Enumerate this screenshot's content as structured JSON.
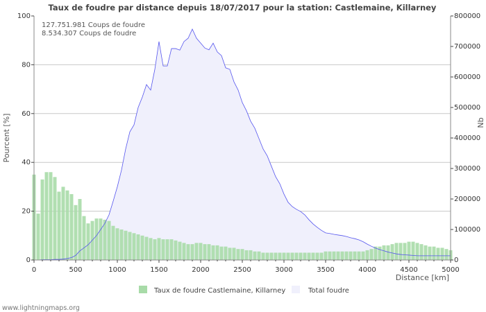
{
  "chart_data": {
    "type": "bar",
    "title": "Taux de foudre par distance depuis 18/07/2017 pour la station: Castlemaine, Killarney",
    "annotations": [
      "127.751.981  Coups de foudre",
      "8.534.307  Coups de foudre"
    ],
    "xlabel": "Distance   [km]",
    "ylabel": "Pourcent   [%]",
    "y2label": "Nb",
    "xlim": [
      0,
      5000
    ],
    "ylim": [
      0,
      100
    ],
    "y2lim": [
      0,
      800000
    ],
    "xticks": [
      0,
      500,
      1000,
      1500,
      2000,
      2500,
      3000,
      3500,
      4000,
      4500,
      5000
    ],
    "yticks": [
      0,
      20,
      40,
      60,
      80,
      100
    ],
    "y2ticks": [
      0,
      100000,
      200000,
      300000,
      400000,
      500000,
      600000,
      700000,
      800000
    ],
    "grid": true,
    "legend_position": "bottom",
    "x": [
      0,
      50,
      100,
      150,
      200,
      250,
      300,
      350,
      400,
      450,
      500,
      550,
      600,
      650,
      700,
      750,
      800,
      850,
      900,
      950,
      1000,
      1050,
      1100,
      1150,
      1200,
      1250,
      1300,
      1350,
      1400,
      1450,
      1500,
      1550,
      1600,
      1650,
      1700,
      1750,
      1800,
      1850,
      1900,
      1950,
      2000,
      2050,
      2100,
      2150,
      2200,
      2250,
      2300,
      2350,
      2400,
      2450,
      2500,
      2550,
      2600,
      2650,
      2700,
      2750,
      2800,
      2850,
      2900,
      2950,
      3000,
      3050,
      3100,
      3150,
      3200,
      3250,
      3300,
      3350,
      3400,
      3450,
      3500,
      3550,
      3600,
      3650,
      3700,
      3750,
      3800,
      3850,
      3900,
      3950,
      4000,
      4050,
      4100,
      4150,
      4200,
      4250,
      4300,
      4350,
      4400,
      4450,
      4500,
      4550,
      4600,
      4650,
      4700,
      4750,
      4800,
      4850,
      4900,
      4950,
      5000
    ],
    "series": [
      {
        "name": "Taux de foudre Castlemaine, Killarney",
        "axis": "left",
        "kind": "bar",
        "color": "#a8dba8",
        "values": [
          35,
          19,
          33,
          36,
          36,
          34,
          28,
          30,
          28.5,
          27,
          22.5,
          25,
          18,
          15,
          16,
          17,
          17,
          16.5,
          16,
          14,
          13,
          12.5,
          12,
          11.5,
          11,
          10.5,
          10,
          9.5,
          9,
          8.5,
          9,
          8.5,
          8.5,
          8.5,
          8,
          7.5,
          7,
          6.5,
          6.5,
          7,
          7,
          6.5,
          6.5,
          6,
          6,
          5.5,
          5.5,
          5,
          5,
          4.5,
          4.5,
          4,
          4,
          3.5,
          3.5,
          3,
          3,
          3,
          3,
          3,
          3,
          3,
          3,
          3,
          3,
          3,
          3,
          3,
          3,
          3,
          3.5,
          3.5,
          3.5,
          3.5,
          3.5,
          3.5,
          3.5,
          3.5,
          3.5,
          3.5,
          4,
          4.5,
          5.5,
          5.5,
          6,
          6,
          6.5,
          7,
          7,
          7,
          7.5,
          7.5,
          7,
          6.5,
          6,
          5.5,
          5.5,
          5,
          5,
          4.5,
          4
        ]
      },
      {
        "name": "Total foudre",
        "axis": "right",
        "kind": "area",
        "color": "#f0f0fc",
        "line_color": "#5555ee",
        "values": [
          0,
          0,
          1000,
          1000,
          1000,
          2000,
          2000,
          3000,
          5000,
          8000,
          15000,
          30000,
          40000,
          50000,
          65000,
          80000,
          100000,
          120000,
          148000,
          193000,
          240000,
          295000,
          364000,
          420000,
          443000,
          500000,
          534000,
          575000,
          557000,
          625000,
          716000,
          636000,
          636000,
          693000,
          693000,
          688000,
          716000,
          727000,
          757000,
          727000,
          711000,
          695000,
          689000,
          711000,
          682000,
          670000,
          630000,
          625000,
          584000,
          557000,
          516000,
          489000,
          455000,
          432000,
          398000,
          364000,
          341000,
          307000,
          273000,
          250000,
          216000,
          189000,
          175000,
          166000,
          159000,
          148000,
          132000,
          118000,
          107000,
          97000,
          89000,
          87000,
          84000,
          82000,
          80000,
          77000,
          73000,
          70000,
          66000,
          60000,
          52000,
          45000,
          39000,
          34000,
          30000,
          26000,
          23000,
          20000,
          18000,
          17000,
          16000,
          15000,
          14000,
          14000,
          14000,
          14000,
          14000,
          14000,
          14000,
          14000,
          14000
        ]
      }
    ]
  },
  "footer": {
    "watermark": "www.lightningmaps.org"
  }
}
